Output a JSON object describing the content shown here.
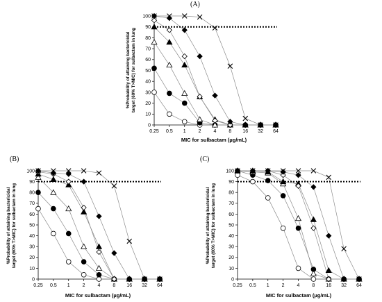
{
  "chart_data": [
    {
      "type": "line",
      "panel_label": "(A)",
      "xlabel": "MIC for sulbactam (µg/mL)",
      "ylabel": [
        "%Probability of attaining bactericidal",
        "target (60% T>MIC) for sulbactam in lung"
      ],
      "categories": [
        "0.25",
        "0.5",
        "1",
        "2",
        "4",
        "8",
        "16",
        "32",
        "64"
      ],
      "ylim": [
        0,
        100
      ],
      "yticks": [
        0,
        10,
        20,
        30,
        40,
        50,
        60,
        70,
        80,
        90,
        100
      ],
      "target_line": 90,
      "series": [
        {
          "marker": "open-circle",
          "values": [
            30,
            10,
            3,
            0,
            0,
            0,
            0,
            0,
            0
          ]
        },
        {
          "marker": "filled-circle",
          "values": [
            52,
            29,
            20,
            2,
            0,
            0,
            0,
            0,
            0
          ]
        },
        {
          "marker": "open-triangle",
          "values": [
            76,
            55,
            29,
            5,
            0,
            0,
            0,
            0,
            0
          ]
        },
        {
          "marker": "filled-triangle",
          "values": [
            90,
            76,
            55,
            26,
            5,
            0,
            0,
            0,
            0
          ]
        },
        {
          "marker": "open-diamond",
          "values": [
            96,
            87,
            63,
            26,
            4,
            0,
            0,
            0,
            0
          ]
        },
        {
          "marker": "filled-diamond",
          "values": [
            100,
            98,
            87,
            63,
            27,
            3,
            0,
            0,
            0
          ]
        },
        {
          "marker": "cross",
          "values": [
            100,
            100,
            100,
            99,
            89,
            54,
            6,
            0,
            0
          ]
        }
      ]
    },
    {
      "type": "line",
      "panel_label": "(B)",
      "xlabel": "MIC for sulbactam (µg/mL)",
      "ylabel": [
        "%Probability of attaining bactericidal",
        "target (60% T>MIC) for sulbactam in lung"
      ],
      "categories": [
        "0.25",
        "0.5",
        "1",
        "2",
        "4",
        "8",
        "16",
        "32",
        "64"
      ],
      "ylim": [
        0,
        100
      ],
      "yticks": [
        0,
        10,
        20,
        30,
        40,
        50,
        60,
        70,
        80,
        90,
        100
      ],
      "target_line": 90,
      "series": [
        {
          "marker": "open-circle",
          "values": [
            65,
            42,
            16,
            4,
            0,
            0,
            0,
            0,
            0
          ]
        },
        {
          "marker": "filled-circle",
          "values": [
            80,
            65,
            42,
            16,
            4,
            0,
            0,
            0,
            0
          ]
        },
        {
          "marker": "open-triangle",
          "values": [
            94,
            80,
            65,
            30,
            10,
            0,
            0,
            0,
            0
          ]
        },
        {
          "marker": "filled-triangle",
          "values": [
            97,
            92,
            87,
            62,
            30,
            0,
            0,
            0,
            0
          ]
        },
        {
          "marker": "open-diamond",
          "values": [
            99,
            97,
            90,
            66,
            25,
            0,
            0,
            0,
            0
          ]
        },
        {
          "marker": "filled-diamond",
          "values": [
            100,
            98,
            97,
            90,
            58,
            24,
            0,
            0,
            0
          ]
        },
        {
          "marker": "cross",
          "values": [
            100,
            100,
            100,
            100,
            98,
            86,
            35,
            0,
            0
          ]
        }
      ]
    },
    {
      "type": "line",
      "panel_label": "(C)",
      "xlabel": "MIC for sulbactam (µg/mL)",
      "ylabel": [
        "%Probability of attaining bactericidal",
        "target (60% T>MIC) for sulbactam in lung"
      ],
      "categories": [
        "0.25",
        "0.5",
        "1",
        "2",
        "4",
        "8",
        "16",
        "32",
        "64"
      ],
      "ylim": [
        0,
        100
      ],
      "yticks": [
        0,
        10,
        20,
        30,
        40,
        50,
        60,
        70,
        80,
        90,
        100
      ],
      "target_line": 90,
      "series": [
        {
          "marker": "open-circle",
          "values": [
            96,
            90,
            75,
            47,
            10,
            0,
            0,
            0,
            0
          ]
        },
        {
          "marker": "filled-circle",
          "values": [
            100,
            96,
            91,
            77,
            47,
            9,
            0,
            0,
            0
          ]
        },
        {
          "marker": "open-triangle",
          "values": [
            100,
            99,
            98,
            88,
            56,
            5,
            0,
            0,
            0
          ]
        },
        {
          "marker": "filled-triangle",
          "values": [
            100,
            100,
            99,
            90,
            88,
            55,
            8,
            0,
            0
          ]
        },
        {
          "marker": "open-diamond",
          "values": [
            100,
            100,
            100,
            96,
            86,
            47,
            0,
            0,
            0
          ]
        },
        {
          "marker": "filled-diamond",
          "values": [
            100,
            100,
            100,
            99,
            96,
            85,
            40,
            0,
            0
          ]
        },
        {
          "marker": "cross",
          "values": [
            100,
            100,
            100,
            100,
            100,
            100,
            94,
            28,
            0
          ]
        }
      ]
    }
  ]
}
